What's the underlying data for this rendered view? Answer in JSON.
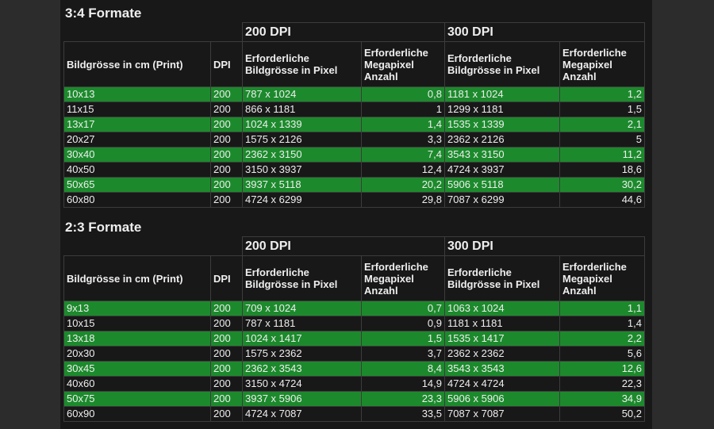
{
  "sections": [
    {
      "title": "3:4 Formate",
      "table": {
        "group_headers": [
          "200 DPI",
          "300 DPI"
        ],
        "headers": [
          "Bildgrösse in cm (Print)",
          "DPI",
          "Erforderliche Bildgrösse in Pixel",
          "Erforderliche Megapixel Anzahl",
          "Erforderliche Bildgrösse in Pixel",
          "Erforderliche Megapixel Anzahl"
        ],
        "rows": [
          [
            "10x13",
            "200",
            "787 x 1024",
            "0,8",
            "1181 x 1024",
            "1,2"
          ],
          [
            "11x15",
            "200",
            "866 x 1181",
            "1",
            "1299 x 1181",
            "1,5"
          ],
          [
            "13x17",
            "200",
            "1024 x 1339",
            "1,4",
            "1535 x 1339",
            "2,1"
          ],
          [
            "20x27",
            "200",
            "1575 x 2126",
            "3,3",
            "2362 x 2126",
            "5"
          ],
          [
            "30x40",
            "200",
            "2362 x 3150",
            "7,4",
            "3543 x 3150",
            "11,2"
          ],
          [
            "40x50",
            "200",
            "3150 x 3937",
            "12,4",
            "4724 x 3937",
            "18,6"
          ],
          [
            "50x65",
            "200",
            "3937 x 5118",
            "20,2",
            "5906 x 5118",
            "30,2"
          ],
          [
            "60x80",
            "200",
            "4724 x 6299",
            "29,8",
            "7087 x 6299",
            "44,6"
          ]
        ]
      }
    },
    {
      "title": "2:3 Formate",
      "table": {
        "group_headers": [
          "200 DPI",
          "300 DPI"
        ],
        "headers": [
          "Bildgrösse in cm (Print)",
          "DPI",
          "Erforderliche Bildgrösse in Pixel",
          "Erforderliche Megapixel Anzahl",
          "Erforderliche Bildgrösse in Pixel",
          "Erforderliche Megapixel Anzahl"
        ],
        "rows": [
          [
            "9x13",
            "200",
            "709 x 1024",
            "0,7",
            "1063 x 1024",
            "1,1"
          ],
          [
            "10x15",
            "200",
            "787 x 1181",
            "0,9",
            "1181 x 1181",
            "1,4"
          ],
          [
            "13x18",
            "200",
            "1024 x 1417",
            "1,5",
            "1535 x 1417",
            "2,2"
          ],
          [
            "20x30",
            "200",
            "1575 x 2362",
            "3,7",
            "2362 x 2362",
            "5,6"
          ],
          [
            "30x45",
            "200",
            "2362 x 3543",
            "8,4",
            "3543 x 3543",
            "12,6"
          ],
          [
            "40x60",
            "200",
            "3150 x 4724",
            "14,9",
            "4724 x 4724",
            "22,3"
          ],
          [
            "50x75",
            "200",
            "3937 x 5906",
            "23,3",
            "5906 x 5906",
            "34,9"
          ],
          [
            "60x90",
            "200",
            "4724 x 7087",
            "33,5",
            "7087 x 7087",
            "50,2"
          ]
        ]
      }
    }
  ]
}
